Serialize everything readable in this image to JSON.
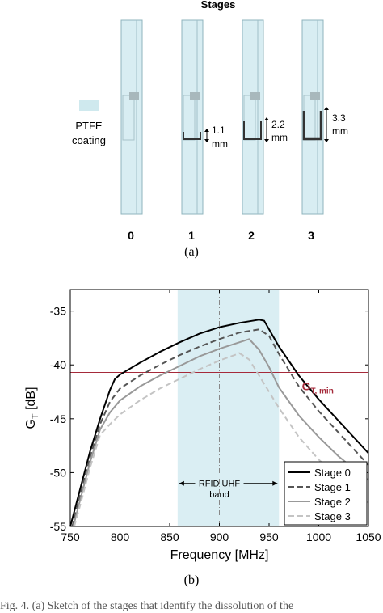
{
  "figure_a": {
    "title": "Stages",
    "legend_label_line1": "PTFE",
    "legend_label_line2": "coating",
    "stages": [
      {
        "label": "0",
        "dim_line1": "",
        "dim_line2": ""
      },
      {
        "label": "1",
        "dim_line1": "1.1",
        "dim_line2": "mm"
      },
      {
        "label": "2",
        "dim_line1": "2.2",
        "dim_line2": "mm"
      },
      {
        "label": "3",
        "dim_line1": "3.3",
        "dim_line2": "mm"
      }
    ],
    "sublabel": "(a)"
  },
  "figure_b": {
    "sublabel": "(b)",
    "band_label_line1": "RFID UHF",
    "band_label_line2": "band",
    "threshold_label": "G",
    "threshold_subscript": "T, min"
  },
  "chart_data": {
    "type": "line",
    "xlabel": "Frequency [MHz]",
    "ylabel": "G",
    "ylabel_subscript": "T",
    "ylabel_unit": " [dB]",
    "xlim": [
      750,
      1050
    ],
    "ylim": [
      -55,
      -33
    ],
    "xticks": [
      750,
      800,
      850,
      900,
      950,
      1000,
      1050
    ],
    "yticks": [
      -55,
      -50,
      -45,
      -40,
      -35
    ],
    "grid": false,
    "legend_position": "bottom-right",
    "band_range": [
      858,
      960
    ],
    "band_center": 900,
    "threshold": -40.7,
    "threshold_color": "#a52a3a",
    "band_color": "#daeef3",
    "series": [
      {
        "name": "Stage 0",
        "color": "#000000",
        "dash": "solid",
        "x": [
          750,
          760,
          770,
          780,
          790,
          795,
          800,
          820,
          840,
          860,
          880,
          900,
          920,
          940,
          945,
          960,
          980,
          1000,
          1020,
          1040,
          1050
        ],
        "y": [
          -55,
          -51.5,
          -48,
          -45,
          -42.3,
          -41.3,
          -40.9,
          -39.8,
          -38.8,
          -37.9,
          -37.1,
          -36.5,
          -36.1,
          -35.8,
          -35.9,
          -38.3,
          -41.0,
          -43.2,
          -45.2,
          -47.2,
          -48.2
        ]
      },
      {
        "name": "Stage 1",
        "color": "#555555",
        "dash": "dashed",
        "x": [
          752,
          760,
          770,
          780,
          790,
          800,
          820,
          840,
          860,
          880,
          900,
          920,
          940,
          950,
          960,
          980,
          1000,
          1020,
          1040,
          1050
        ],
        "y": [
          -55,
          -52,
          -48.5,
          -45.5,
          -43.4,
          -42.2,
          -41.0,
          -40.0,
          -39.1,
          -38.3,
          -37.6,
          -37.0,
          -36.7,
          -37.3,
          -39.0,
          -42.0,
          -44.3,
          -46.3,
          -48.3,
          -49.3
        ]
      },
      {
        "name": "Stage 2",
        "color": "#999999",
        "dash": "solid",
        "x": [
          753,
          760,
          770,
          780,
          790,
          800,
          820,
          840,
          860,
          880,
          900,
          920,
          930,
          940,
          950,
          960,
          980,
          1000,
          1020,
          1040,
          1050
        ],
        "y": [
          -55,
          -52.5,
          -49,
          -46,
          -44.4,
          -43.3,
          -42.0,
          -41.0,
          -40.1,
          -39.2,
          -38.5,
          -37.9,
          -37.6,
          -38.6,
          -40.2,
          -42.1,
          -44.7,
          -46.7,
          -48.5,
          -50.0,
          -50.7
        ]
      },
      {
        "name": "Stage 3",
        "color": "#c4c4c4",
        "dash": "dashed",
        "x": [
          754,
          760,
          770,
          780,
          790,
          800,
          820,
          840,
          860,
          880,
          900,
          915,
          920,
          930,
          940,
          960,
          980,
          1000,
          1020,
          1040,
          1050
        ],
        "y": [
          -55,
          -53,
          -49.5,
          -46.5,
          -45.5,
          -44.6,
          -43.3,
          -42.2,
          -41.3,
          -40.4,
          -39.6,
          -39.1,
          -38.9,
          -39.5,
          -41.0,
          -44.0,
          -46.7,
          -48.8,
          -50.5,
          -52.0,
          -52.8
        ]
      }
    ]
  },
  "caption": "Fig. 4. (a) Sketch of the stages that identify the dissolution of the"
}
